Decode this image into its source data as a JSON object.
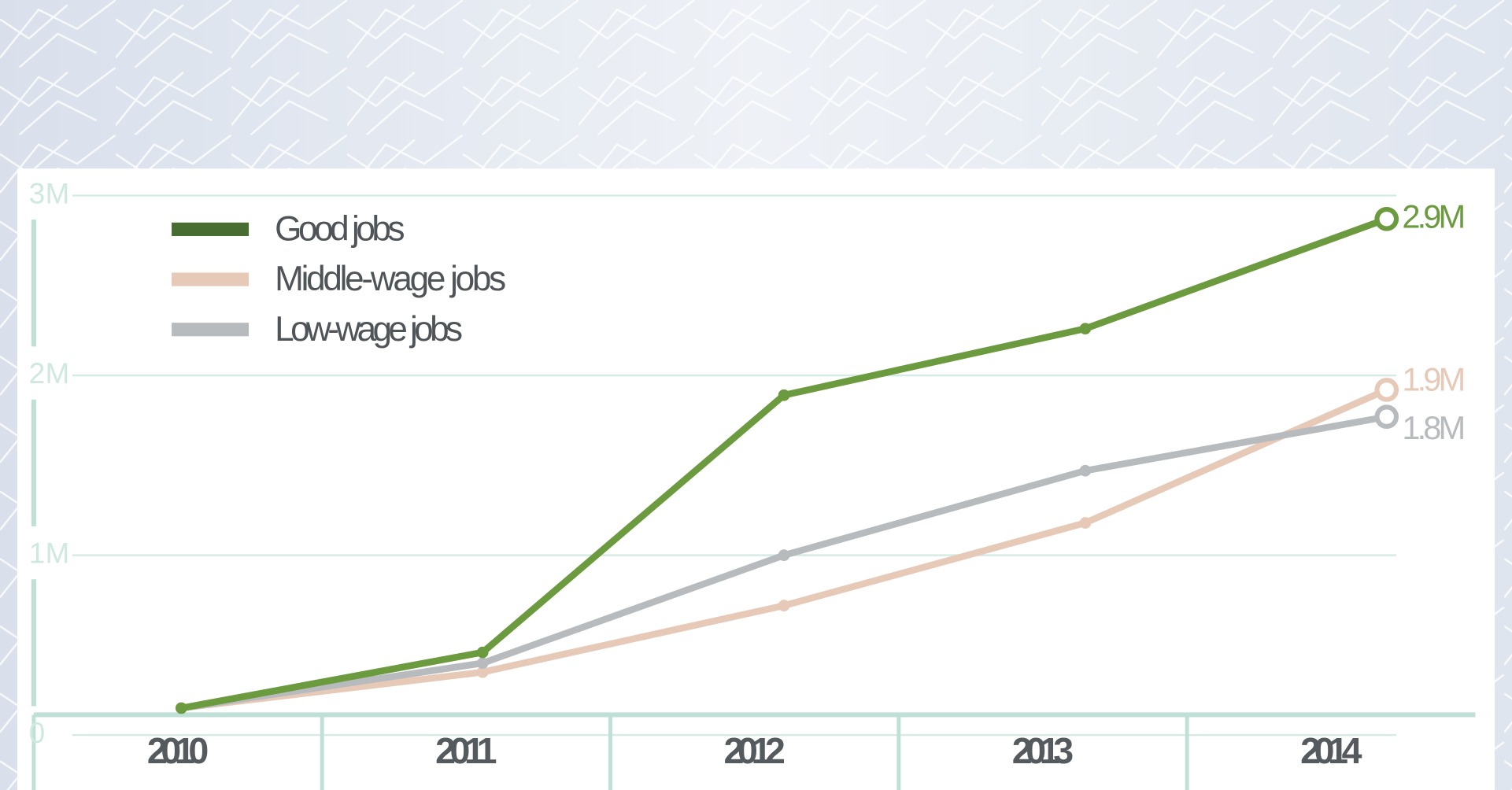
{
  "chart_data": {
    "type": "line",
    "categories": [
      "2010",
      "2011",
      "2012",
      "2013",
      "2014"
    ],
    "series": [
      {
        "name": "Good jobs",
        "color": "#6b9a3f",
        "values": [
          150000,
          460000,
          1890000,
          2260000,
          2870000
        ],
        "value_labels": [
          null,
          null,
          null,
          null,
          "2.9M"
        ]
      },
      {
        "name": "Middle-wage jobs",
        "color": "#e6c9b7",
        "values": [
          150000,
          350000,
          720000,
          1180000,
          1920000
        ],
        "value_labels": [
          null,
          null,
          null,
          null,
          "1.9M"
        ]
      },
      {
        "name": "Low-wage jobs",
        "color": "#b8bbbe",
        "values": [
          150000,
          400000,
          1000000,
          1470000,
          1770000
        ],
        "value_labels": [
          null,
          null,
          null,
          null,
          "1.8M"
        ]
      }
    ],
    "ylim": [
      0,
      3000000
    ],
    "yticks": [
      0,
      {
        "value": 1000000,
        "label": "1M"
      },
      {
        "value": 2000000,
        "label": "2M"
      },
      {
        "value": 3000000,
        "label": "3M"
      }
    ],
    "grid": true
  }
}
